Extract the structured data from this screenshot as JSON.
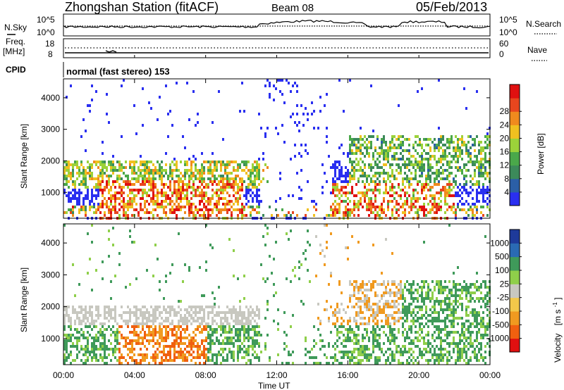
{
  "header": {
    "station": "Zhongshan Station (fitACF)",
    "beam": "Beam 08",
    "date": "05/Feb/2013"
  },
  "noise_panel": {
    "left_label": "N.Sky",
    "right_label": "N.Search",
    "left_ticks": [
      "10^5",
      "10^0"
    ],
    "right_ticks": [
      "10^5",
      "10^0"
    ]
  },
  "freq_panel": {
    "left_label_1": "Freq.",
    "left_label_2": "[MHz]",
    "right_label": "Nave",
    "left_ticks": [
      "18",
      "8"
    ],
    "right_ticks": [
      "60",
      "0"
    ]
  },
  "cpid": {
    "label": "CPID",
    "mode_text": "normal (fast stereo) 153"
  },
  "colors": {
    "power_scale": [
      "#2a2ff0",
      "#2b5fa6",
      "#3c8a5a",
      "#4aa84a",
      "#9cd23a",
      "#f0c020",
      "#f08a1e",
      "#e8461e",
      "#e01010"
    ],
    "velocity_scale": [
      "#e01010",
      "#f06010",
      "#f09a20",
      "#f2c84a",
      "#c8c8c0",
      "#8fcf4a",
      "#3f9a5a",
      "#2a6ab4",
      "#1e3a9a"
    ]
  },
  "chart_data": [
    {
      "type": "heatmap",
      "name": "power",
      "ylabel": "Slant Range [km]",
      "ylim": [
        180,
        4600
      ],
      "yticks": [
        "1000",
        "2000",
        "3000",
        "4000"
      ],
      "xlim": [
        "00:00",
        "24:00"
      ],
      "colorbar": {
        "label": "Power [dB]",
        "ticks": [
          "4",
          "8",
          "12",
          "16",
          "20",
          "24",
          "28"
        ],
        "range": [
          0,
          32
        ]
      },
      "description_values": {
        "echo_bands_km": [
          [
            300,
            2000
          ],
          [
            1200,
            2800
          ]
        ],
        "peak_power_dB": 30
      }
    },
    {
      "type": "heatmap",
      "name": "velocity",
      "ylabel": "Slant Range [km]",
      "ylim": [
        180,
        4600
      ],
      "yticks": [
        "1000",
        "2000",
        "3000",
        "4000"
      ],
      "xlabel": "Time UT",
      "xticks": [
        "00:00",
        "04:00",
        "08:00",
        "12:00",
        "16:00",
        "20:00",
        "00:00"
      ],
      "colorbar": {
        "label_main": "Velocity",
        "label_unit": "[m s",
        "label_exp": "-1",
        "label_close": "]",
        "ticks": [
          "1000",
          "500",
          "100",
          "25",
          "-25",
          "-100",
          "-500",
          "-1000"
        ]
      }
    }
  ]
}
